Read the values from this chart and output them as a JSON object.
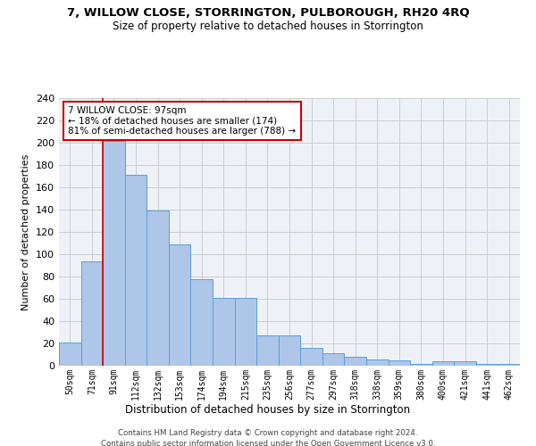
{
  "title": "7, WILLOW CLOSE, STORRINGTON, PULBOROUGH, RH20 4RQ",
  "subtitle": "Size of property relative to detached houses in Storrington",
  "xlabel": "Distribution of detached houses by size in Storrington",
  "ylabel": "Number of detached properties",
  "categories": [
    "50sqm",
    "71sqm",
    "91sqm",
    "112sqm",
    "132sqm",
    "153sqm",
    "174sqm",
    "194sqm",
    "215sqm",
    "235sqm",
    "256sqm",
    "277sqm",
    "297sqm",
    "318sqm",
    "338sqm",
    "359sqm",
    "380sqm",
    "400sqm",
    "421sqm",
    "441sqm",
    "462sqm"
  ],
  "values": [
    21,
    94,
    202,
    171,
    139,
    109,
    78,
    61,
    61,
    27,
    27,
    16,
    11,
    8,
    6,
    5,
    2,
    4,
    4,
    2,
    2
  ],
  "bar_color": "#aec6e8",
  "bar_edge_color": "#5a9fd4",
  "annotation_text": "7 WILLOW CLOSE: 97sqm\n← 18% of detached houses are smaller (174)\n81% of semi-detached houses are larger (788) →",
  "annotation_box_color": "#ffffff",
  "annotation_box_edge_color": "#cc0000",
  "annotation_text_color": "#000000",
  "highlight_line_color": "#cc0000",
  "ylim": [
    0,
    240
  ],
  "yticks": [
    0,
    20,
    40,
    60,
    80,
    100,
    120,
    140,
    160,
    180,
    200,
    220,
    240
  ],
  "grid_color": "#cccccc",
  "bg_color": "#eef2f8",
  "footer_line1": "Contains HM Land Registry data © Crown copyright and database right 2024.",
  "footer_line2": "Contains public sector information licensed under the Open Government Licence v3.0."
}
